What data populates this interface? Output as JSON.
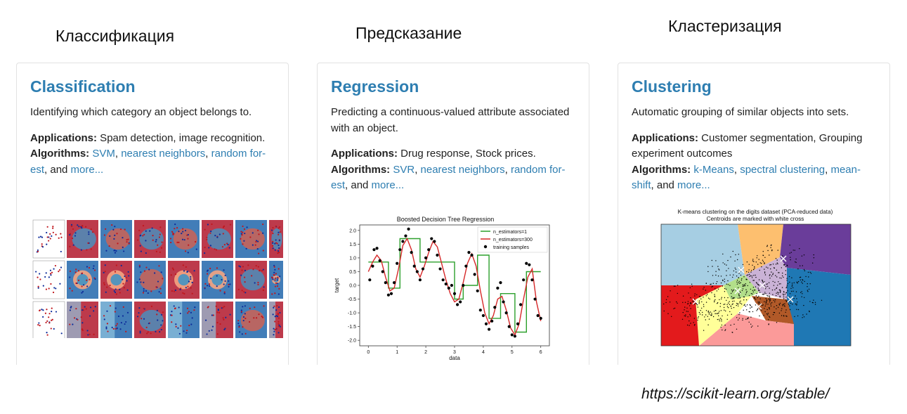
{
  "labels": {
    "classification_ru": "Классификация",
    "regression_ru": "Предсказание",
    "clustering_ru": "Кластеризация"
  },
  "cards": {
    "classification": {
      "title": "Classification",
      "description": "Identifying which category an object belongs to.",
      "applications_label": "Applications:",
      "applications": " Spam detection, image recognition.",
      "algorithms_label": "Algorithms:",
      "alg1": "SVM",
      "sep1": ", ",
      "alg2": "nearest neighbors",
      "sep2": ", ",
      "alg3": "random for-est",
      "sep3": ", and ",
      "more": "more..."
    },
    "regression": {
      "title": "Regression",
      "description": "Predicting a continuous-valued attribute associated with an object.",
      "applications_label": "Applications:",
      "applications": " Drug response, Stock prices.",
      "algorithms_label": "Algorithms:",
      "alg1": "SVR",
      "sep1": ", ",
      "alg2": "nearest neighbors",
      "sep2": ", ",
      "alg3": "random for-est",
      "sep3": ", and ",
      "more": "more...",
      "chart_title": "Boosted Decision Tree Regression",
      "xlabel": "data",
      "ylabel": "target",
      "legend": [
        "n_estimators=1",
        "n_estimators=300",
        "training samples"
      ]
    },
    "clustering": {
      "title": "Clustering",
      "description": "Automatic grouping of similar objects into sets.",
      "applications_label": "Applications:",
      "applications": " Customer segmentation, Grouping experiment outcomes",
      "algorithms_label": "Algorithms:",
      "alg1": "k-Means",
      "sep1": ", ",
      "alg2": "spectral clustering",
      "sep2": ", ",
      "alg3": "mean-shift",
      "sep3": ", and ",
      "more": "more...",
      "chart_title_1": "K-means clustering on the digits dataset (PCA-reduced data)",
      "chart_title_2": "Centroids are marked with white cross"
    }
  },
  "source_url": "https://scikit-learn.org/stable/",
  "colors": {
    "link": "#2e7eb1",
    "title": "#2e7eb1"
  },
  "chart_data": {
    "type": "line",
    "title": "Boosted Decision Tree Regression",
    "xlabel": "data",
    "ylabel": "target",
    "xlim": [
      -0.3,
      6.3
    ],
    "ylim": [
      -2.2,
      2.2
    ],
    "xticks": [
      0,
      1,
      2,
      3,
      4,
      5,
      6
    ],
    "yticks": [
      -2.0,
      -1.5,
      -1.0,
      -0.5,
      0.0,
      0.5,
      1.0,
      1.5,
      2.0
    ],
    "legend_position": "top-right",
    "series": [
      {
        "name": "n_estimators=1",
        "color": "#2ca02c",
        "x": [
          0,
          0.7,
          0.7,
          1.1,
          1.1,
          1.8,
          1.8,
          3.0,
          3.0,
          3.3,
          3.3,
          3.8,
          3.8,
          4.2,
          4.2,
          4.6,
          4.6,
          5.1,
          5.1,
          5.5,
          5.5,
          6.0
        ],
        "y": [
          0.85,
          0.85,
          -0.1,
          -0.1,
          1.7,
          1.7,
          0.85,
          0.85,
          -0.5,
          -0.5,
          0.0,
          0.0,
          1.1,
          1.1,
          -1.2,
          -1.2,
          -0.3,
          -0.3,
          -1.7,
          -1.7,
          0.5,
          0.5
        ]
      },
      {
        "name": "n_estimators=300",
        "color": "#d62728",
        "x": [
          0.0,
          0.15,
          0.3,
          0.45,
          0.6,
          0.75,
          0.9,
          1.05,
          1.2,
          1.35,
          1.5,
          1.65,
          1.8,
          1.95,
          2.1,
          2.25,
          2.4,
          2.55,
          2.7,
          2.85,
          3.0,
          3.15,
          3.3,
          3.45,
          3.6,
          3.75,
          3.9,
          4.05,
          4.2,
          4.35,
          4.5,
          4.65,
          4.8,
          4.95,
          5.1,
          5.25,
          5.4,
          5.55,
          5.7,
          5.85,
          6.0
        ],
        "y": [
          0.5,
          0.85,
          1.1,
          0.9,
          0.3,
          -0.2,
          -0.1,
          0.6,
          1.45,
          1.7,
          1.3,
          0.6,
          0.3,
          0.7,
          1.2,
          1.6,
          1.4,
          0.8,
          0.2,
          -0.3,
          -0.6,
          -0.5,
          0.1,
          0.8,
          1.15,
          0.7,
          -0.2,
          -1.0,
          -1.4,
          -1.1,
          -0.5,
          -0.4,
          -0.9,
          -1.55,
          -1.8,
          -1.4,
          -0.5,
          0.3,
          0.6,
          -0.6,
          -1.3
        ]
      },
      {
        "name": "training samples",
        "color": "#000000",
        "x": [
          0.05,
          0.15,
          0.2,
          0.3,
          0.4,
          0.5,
          0.6,
          0.7,
          0.8,
          0.9,
          1.0,
          1.1,
          1.2,
          1.3,
          1.4,
          1.5,
          1.6,
          1.7,
          1.8,
          1.9,
          2.0,
          2.1,
          2.2,
          2.3,
          2.4,
          2.5,
          2.6,
          2.7,
          2.8,
          2.9,
          3.0,
          3.1,
          3.2,
          3.3,
          3.4,
          3.5,
          3.6,
          3.7,
          3.8,
          3.9,
          4.0,
          4.1,
          4.2,
          4.3,
          4.4,
          4.5,
          4.6,
          4.7,
          4.8,
          4.9,
          5.0,
          5.1,
          5.2,
          5.3,
          5.4,
          5.5,
          5.6,
          5.7,
          5.8,
          5.9,
          6.0
        ],
        "y": [
          0.2,
          0.7,
          1.3,
          1.35,
          0.9,
          0.5,
          0.1,
          -0.35,
          -0.3,
          0.1,
          0.8,
          1.3,
          1.6,
          1.8,
          2.05,
          1.2,
          0.7,
          0.5,
          0.2,
          0.6,
          1.0,
          1.3,
          1.7,
          1.6,
          1.1,
          0.6,
          0.2,
          0.05,
          -0.1,
          0.0,
          -0.3,
          -0.7,
          -0.6,
          0.0,
          0.7,
          1.2,
          1.1,
          0.4,
          -0.2,
          -0.9,
          -1.1,
          -1.4,
          -1.6,
          -1.3,
          -0.8,
          -0.1,
          0.1,
          -0.6,
          -1.0,
          -1.5,
          -1.8,
          -1.85,
          -1.4,
          -0.7,
          0.2,
          0.8,
          0.75,
          0.2,
          -0.5,
          -1.1,
          -1.2
        ]
      }
    ]
  }
}
